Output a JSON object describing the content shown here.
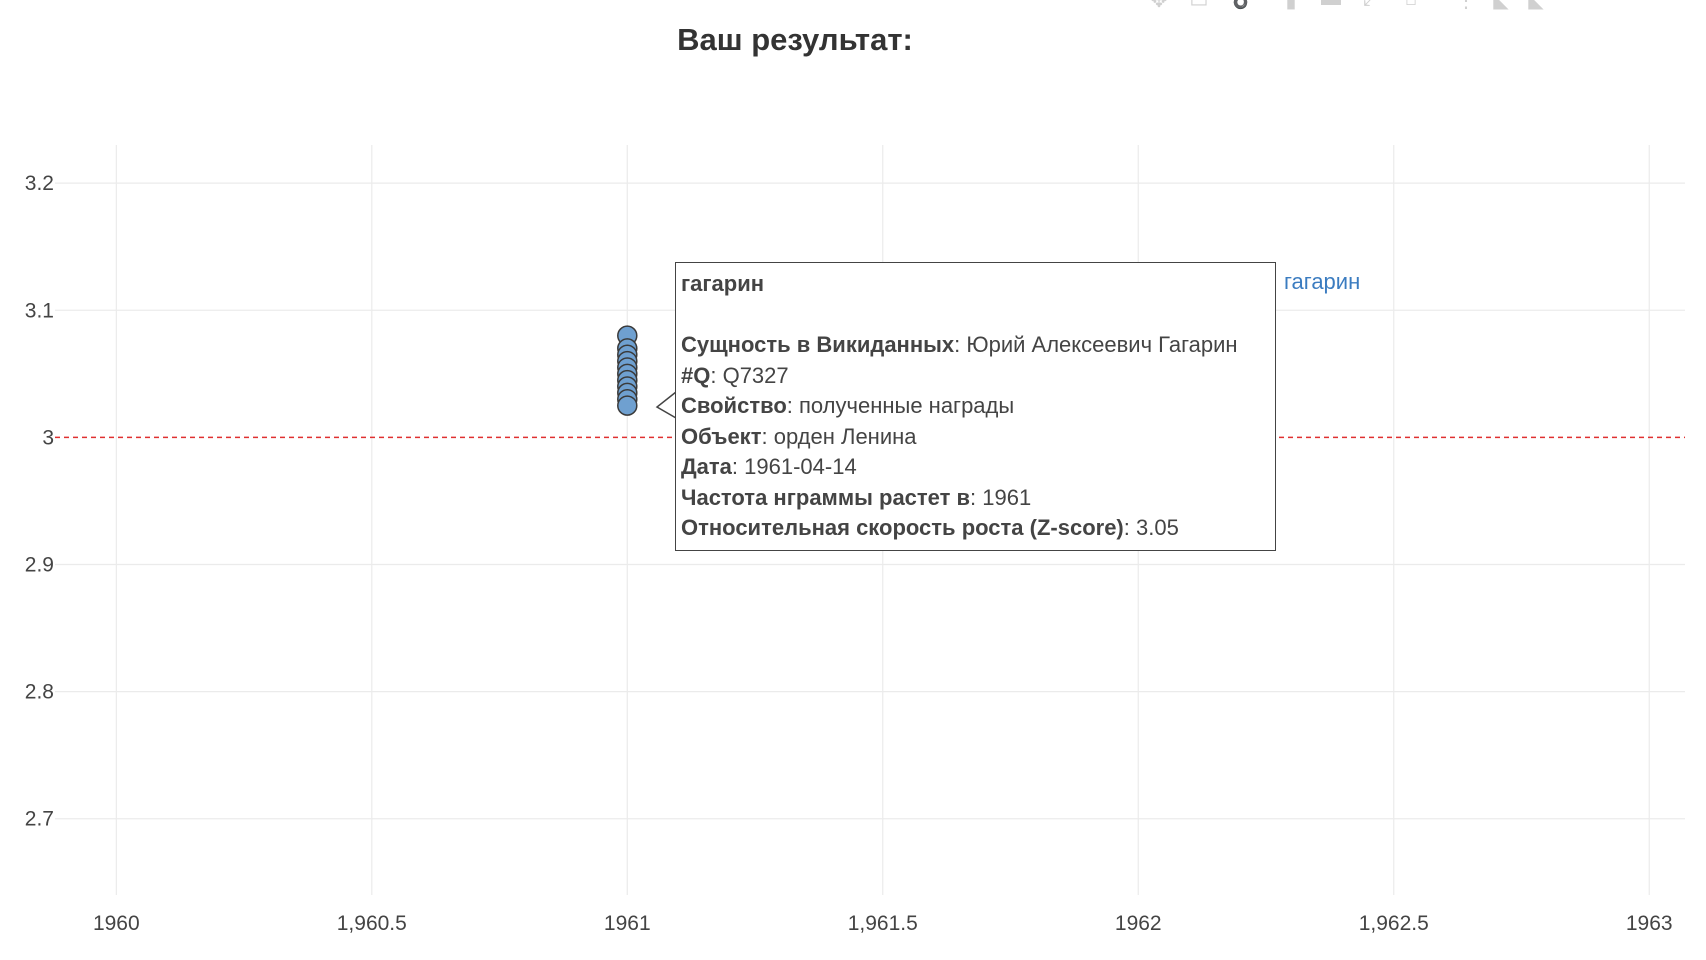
{
  "title": "Ваш результат:",
  "toolbar_icons": [
    "camera-icon",
    "zoom-icon",
    "pan-icon",
    "box-select-icon",
    "lasso-select-icon",
    "zoom-in-icon",
    "zoom-out-icon",
    "autoscale-icon",
    "reset-axes-icon",
    "spike-lines-icon",
    "hover-closest-icon",
    "hover-compare-icon"
  ],
  "chart_data": {
    "type": "scatter",
    "x_ticks": [
      "1960",
      "1,960.5",
      "1961",
      "1,961.5",
      "1962",
      "1,962.5",
      "1963"
    ],
    "x_tick_values": [
      1960,
      1960.5,
      1961,
      1961.5,
      1962,
      1962.5,
      1963
    ],
    "y_ticks": [
      "2.7",
      "2.8",
      "2.9",
      "3",
      "3.1",
      "3.2"
    ],
    "y_tick_values": [
      2.7,
      2.8,
      2.9,
      3.0,
      3.1,
      3.2
    ],
    "xlim": [
      1959.88,
      1963.07
    ],
    "ylim": [
      2.64,
      3.23
    ],
    "grid": true,
    "threshold_line": {
      "y": 3.0,
      "color": "#e03030",
      "style": "dashed"
    },
    "marker_color": "#6fa0d0",
    "series": [
      {
        "name": "гагарин",
        "color": "#3b7cc0",
        "points": [
          {
            "x": 1961,
            "y": 3.08
          },
          {
            "x": 1961,
            "y": 3.07
          },
          {
            "x": 1961,
            "y": 3.065
          },
          {
            "x": 1961,
            "y": 3.06
          },
          {
            "x": 1961,
            "y": 3.055
          },
          {
            "x": 1961,
            "y": 3.05
          },
          {
            "x": 1961,
            "y": 3.045
          },
          {
            "x": 1961,
            "y": 3.04
          },
          {
            "x": 1961,
            "y": 3.035
          },
          {
            "x": 1961,
            "y": 3.03
          },
          {
            "x": 1961,
            "y": 3.025
          }
        ]
      }
    ]
  },
  "tooltip": {
    "title": "гагарин",
    "rows": [
      {
        "label": "Сущность в Викиданных",
        "value": ": Юрий Алексеевич Гагарин"
      },
      {
        "label": "#Q",
        "value": ": Q7327"
      },
      {
        "label": "Свойство",
        "value": ": полученные награды"
      },
      {
        "label": "Объект",
        "value": ": орден Ленина"
      },
      {
        "label": "Дата",
        "value": ": 1961-04-14"
      },
      {
        "label": "Частота нграммы растет в",
        "value": ": 1961"
      },
      {
        "label": "Относительная скорость роста (Z-score)",
        "value": ": 3.05"
      }
    ]
  }
}
